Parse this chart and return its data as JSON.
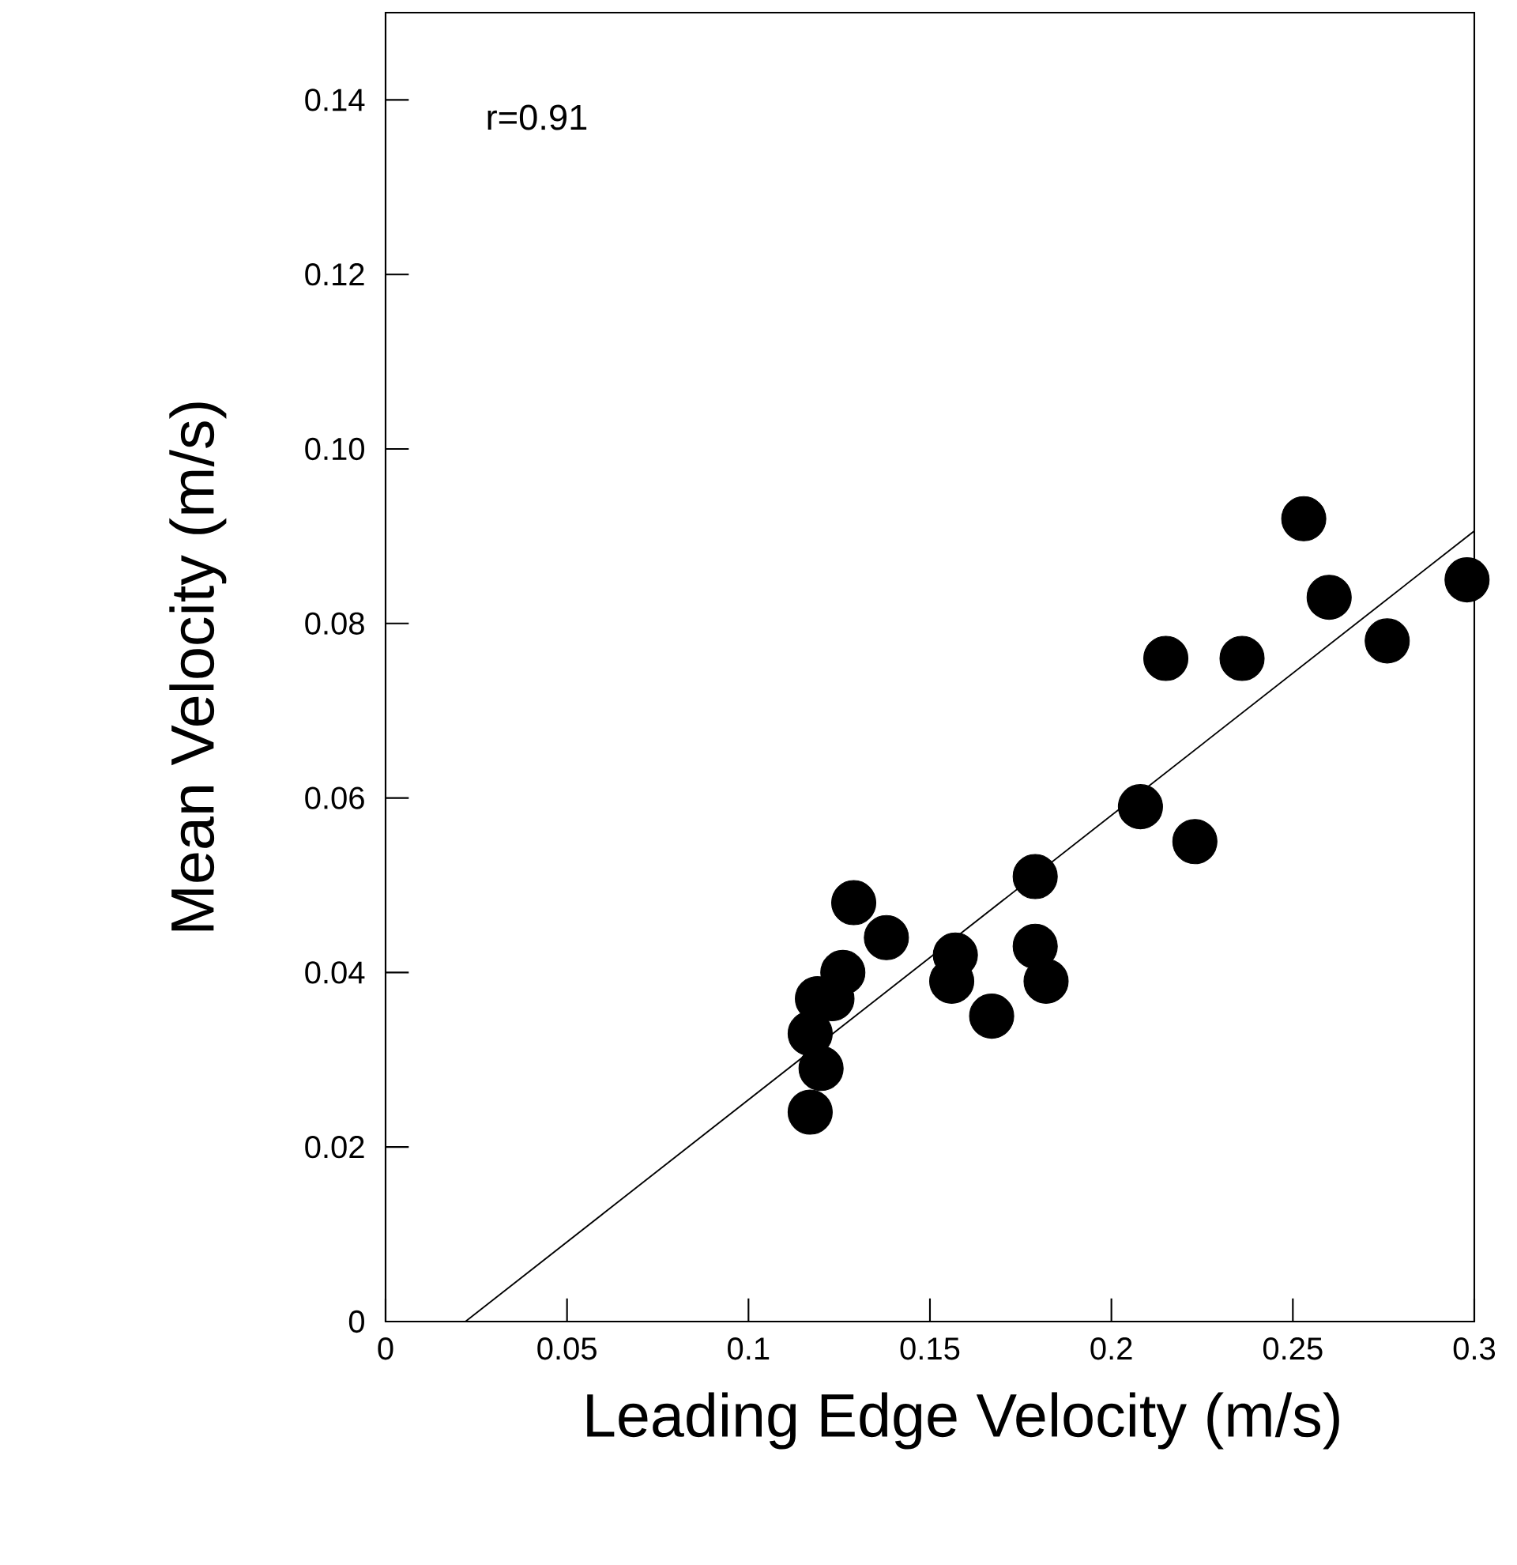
{
  "chart_data": {
    "type": "scatter",
    "xlabel": "Leading Edge Velocity (m/s)",
    "ylabel": "Mean Velocity (m/s)",
    "annotations": [
      "r=0.91"
    ],
    "marker": "circle",
    "xlim": [
      0,
      0.3
    ],
    "ylim": [
      0,
      0.15
    ],
    "xticks": [
      0,
      0.05,
      0.1,
      0.15,
      0.2,
      0.25,
      0.3
    ],
    "yticks": [
      0,
      0.02,
      0.04,
      0.06,
      0.08,
      {
        "value": 0.1,
        "label": "0.10"
      },
      0.12,
      0.14
    ],
    "series": [
      {
        "color": "#000000",
        "x": [
          0.117,
          0.12,
          0.117,
          0.119,
          0.123,
          0.126,
          0.129,
          0.138,
          0.156,
          0.157,
          0.167,
          0.179,
          0.179,
          0.182,
          0.208,
          0.215,
          0.223,
          0.236,
          0.253,
          0.26,
          0.276,
          0.298
        ],
        "values": [
          0.024,
          0.029,
          0.033,
          0.037,
          0.037,
          0.04,
          0.048,
          0.044,
          0.039,
          0.042,
          0.035,
          0.051,
          0.043,
          0.039,
          0.059,
          0.076,
          0.055,
          0.076,
          0.092,
          0.083,
          0.078,
          0.085
        ]
      },
      {
        "type": "line",
        "color": "#000000",
        "line_style": "solid",
        "marker": "none",
        "x": [
          0.022,
          0.3
        ],
        "values": [
          0,
          0.0906
        ]
      }
    ]
  }
}
